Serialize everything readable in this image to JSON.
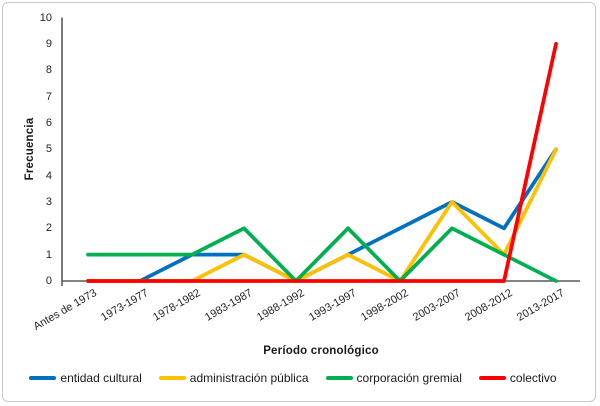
{
  "figure": {
    "background": "#ffffff",
    "border_color": "#c9c9c9"
  },
  "chart_data": {
    "type": "line",
    "title": "",
    "xlabel": "Período cronológico",
    "ylabel": "Frecuencia",
    "ylim": [
      0,
      10
    ],
    "yticks": [
      0,
      1,
      2,
      3,
      4,
      5,
      6,
      7,
      8,
      9,
      10
    ],
    "grid": false,
    "legend_position": "bottom",
    "axis_color": "#595959",
    "categories": [
      "Antes de 1973",
      "1973-1977",
      "1978-1982",
      "1983-1987",
      "1988-1992",
      "1993-1997",
      "1998-2002",
      "2003-2007",
      "2008-2012",
      "2013-2017"
    ],
    "series": [
      {
        "name": "entidad cultural",
        "color": "#0070C0",
        "values": [
          0,
          0,
          1,
          1,
          0,
          1,
          2,
          3,
          2,
          5
        ]
      },
      {
        "name": "administración pública",
        "color": "#FFC000",
        "values": [
          0,
          0,
          0,
          1,
          0,
          1,
          0,
          3,
          1,
          5
        ]
      },
      {
        "name": "corporación gremial",
        "color": "#00B050",
        "values": [
          1,
          1,
          1,
          2,
          0,
          2,
          0,
          2,
          1,
          0
        ]
      },
      {
        "name": "colectivo",
        "color": "#FF0000",
        "values": [
          0,
          0,
          0,
          0,
          0,
          0,
          0,
          0,
          0,
          9
        ]
      }
    ]
  }
}
